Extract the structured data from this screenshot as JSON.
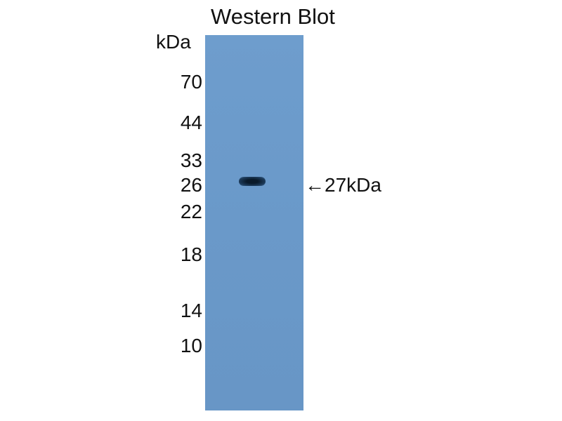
{
  "title": "Western Blot",
  "unit_label": "kDa",
  "markers": [
    "70",
    "44",
    "33",
    "26",
    "22",
    "18",
    "14",
    "10"
  ],
  "band_annotation": "←27kDa",
  "colors": {
    "membrane": "#6a99c9",
    "band": "#0a1a2a"
  }
}
